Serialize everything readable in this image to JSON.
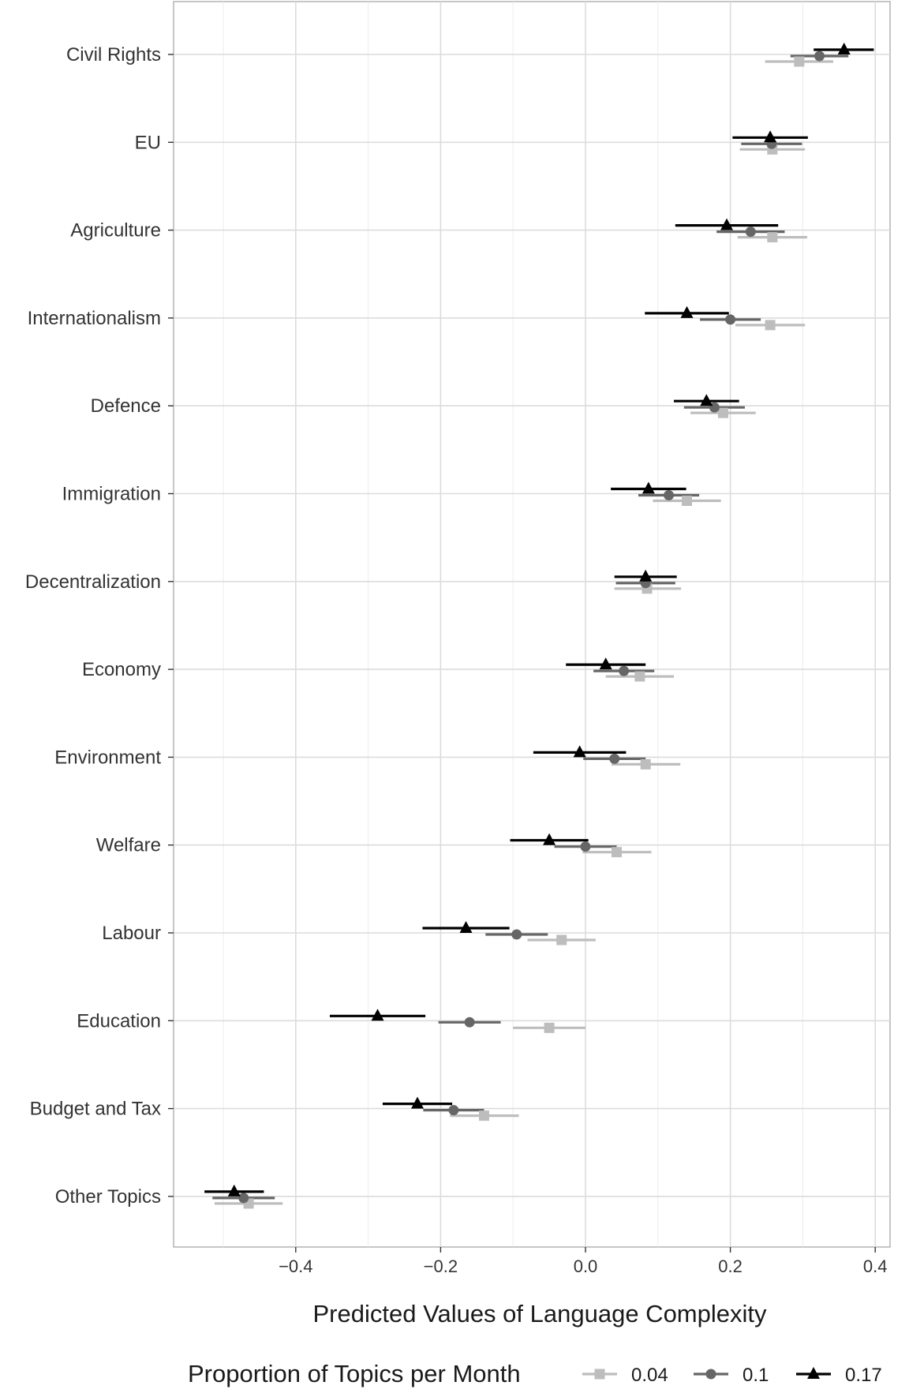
{
  "chart_data": {
    "type": "dot-errorbar",
    "title": "",
    "xlabel": "Predicted Values of Language Complexity",
    "ylabel": "",
    "xlim": [
      -0.57,
      0.42
    ],
    "x_ticks": [
      {
        "value": -0.4,
        "label": "−0.4"
      },
      {
        "value": -0.2,
        "label": "−0.2"
      },
      {
        "value": 0.0,
        "label": "0.0"
      },
      {
        "value": 0.2,
        "label": "0.2"
      },
      {
        "value": 0.4,
        "label": "0.4"
      }
    ],
    "grid": true,
    "legend": {
      "title": "Proportion of Topics per Month",
      "position": "bottom"
    },
    "categories": [
      "Civil Rights",
      "EU",
      "Agriculture",
      "Internationalism",
      "Defence",
      "Immigration",
      "Decentralization",
      "Economy",
      "Environment",
      "Welfare",
      "Labour",
      "Education",
      "Budget and Tax",
      "Other Topics"
    ],
    "series": [
      {
        "name": "0.04",
        "marker": "square",
        "color": "#bdbdbd",
        "points": [
          {
            "est": 0.295,
            "lo": 0.248,
            "hi": 0.342
          },
          {
            "est": 0.258,
            "lo": 0.213,
            "hi": 0.303
          },
          {
            "est": 0.258,
            "lo": 0.21,
            "hi": 0.306
          },
          {
            "est": 0.255,
            "lo": 0.207,
            "hi": 0.303
          },
          {
            "est": 0.19,
            "lo": 0.145,
            "hi": 0.235
          },
          {
            "est": 0.14,
            "lo": 0.093,
            "hi": 0.187
          },
          {
            "est": 0.085,
            "lo": 0.04,
            "hi": 0.132
          },
          {
            "est": 0.075,
            "lo": 0.028,
            "hi": 0.122
          },
          {
            "est": 0.083,
            "lo": 0.036,
            "hi": 0.131
          },
          {
            "est": 0.043,
            "lo": -0.004,
            "hi": 0.091
          },
          {
            "est": -0.033,
            "lo": -0.08,
            "hi": 0.014
          },
          {
            "est": -0.05,
            "lo": -0.1,
            "hi": 0.0
          },
          {
            "est": -0.14,
            "lo": -0.187,
            "hi": -0.092
          },
          {
            "est": -0.465,
            "lo": -0.512,
            "hi": -0.418
          }
        ]
      },
      {
        "name": "0.1",
        "marker": "circle",
        "color": "#666666",
        "points": [
          {
            "est": 0.323,
            "lo": 0.283,
            "hi": 0.363
          },
          {
            "est": 0.257,
            "lo": 0.215,
            "hi": 0.299
          },
          {
            "est": 0.228,
            "lo": 0.181,
            "hi": 0.275
          },
          {
            "est": 0.2,
            "lo": 0.158,
            "hi": 0.242
          },
          {
            "est": 0.178,
            "lo": 0.136,
            "hi": 0.22
          },
          {
            "est": 0.115,
            "lo": 0.073,
            "hi": 0.157
          },
          {
            "est": 0.083,
            "lo": 0.042,
            "hi": 0.124
          },
          {
            "est": 0.053,
            "lo": 0.011,
            "hi": 0.095
          },
          {
            "est": 0.04,
            "lo": -0.003,
            "hi": 0.083
          },
          {
            "est": 0.0,
            "lo": -0.043,
            "hi": 0.043
          },
          {
            "est": -0.095,
            "lo": -0.138,
            "hi": -0.052
          },
          {
            "est": -0.16,
            "lo": -0.203,
            "hi": -0.117
          },
          {
            "est": -0.182,
            "lo": -0.224,
            "hi": -0.14
          },
          {
            "est": -0.472,
            "lo": -0.515,
            "hi": -0.429
          }
        ]
      },
      {
        "name": "0.17",
        "marker": "triangle",
        "color": "#000000",
        "points": [
          {
            "est": 0.357,
            "lo": 0.315,
            "hi": 0.398
          },
          {
            "est": 0.255,
            "lo": 0.203,
            "hi": 0.307
          },
          {
            "est": 0.195,
            "lo": 0.124,
            "hi": 0.266
          },
          {
            "est": 0.14,
            "lo": 0.082,
            "hi": 0.198
          },
          {
            "est": 0.167,
            "lo": 0.122,
            "hi": 0.212
          },
          {
            "est": 0.087,
            "lo": 0.035,
            "hi": 0.139
          },
          {
            "est": 0.083,
            "lo": 0.04,
            "hi": 0.126
          },
          {
            "est": 0.028,
            "lo": -0.027,
            "hi": 0.083
          },
          {
            "est": -0.008,
            "lo": -0.072,
            "hi": 0.056
          },
          {
            "est": -0.05,
            "lo": -0.104,
            "hi": 0.004
          },
          {
            "est": -0.165,
            "lo": -0.225,
            "hi": -0.105
          },
          {
            "est": -0.287,
            "lo": -0.353,
            "hi": -0.221
          },
          {
            "est": -0.232,
            "lo": -0.28,
            "hi": -0.184
          },
          {
            "est": -0.485,
            "lo": -0.526,
            "hi": -0.444
          }
        ]
      }
    ]
  }
}
